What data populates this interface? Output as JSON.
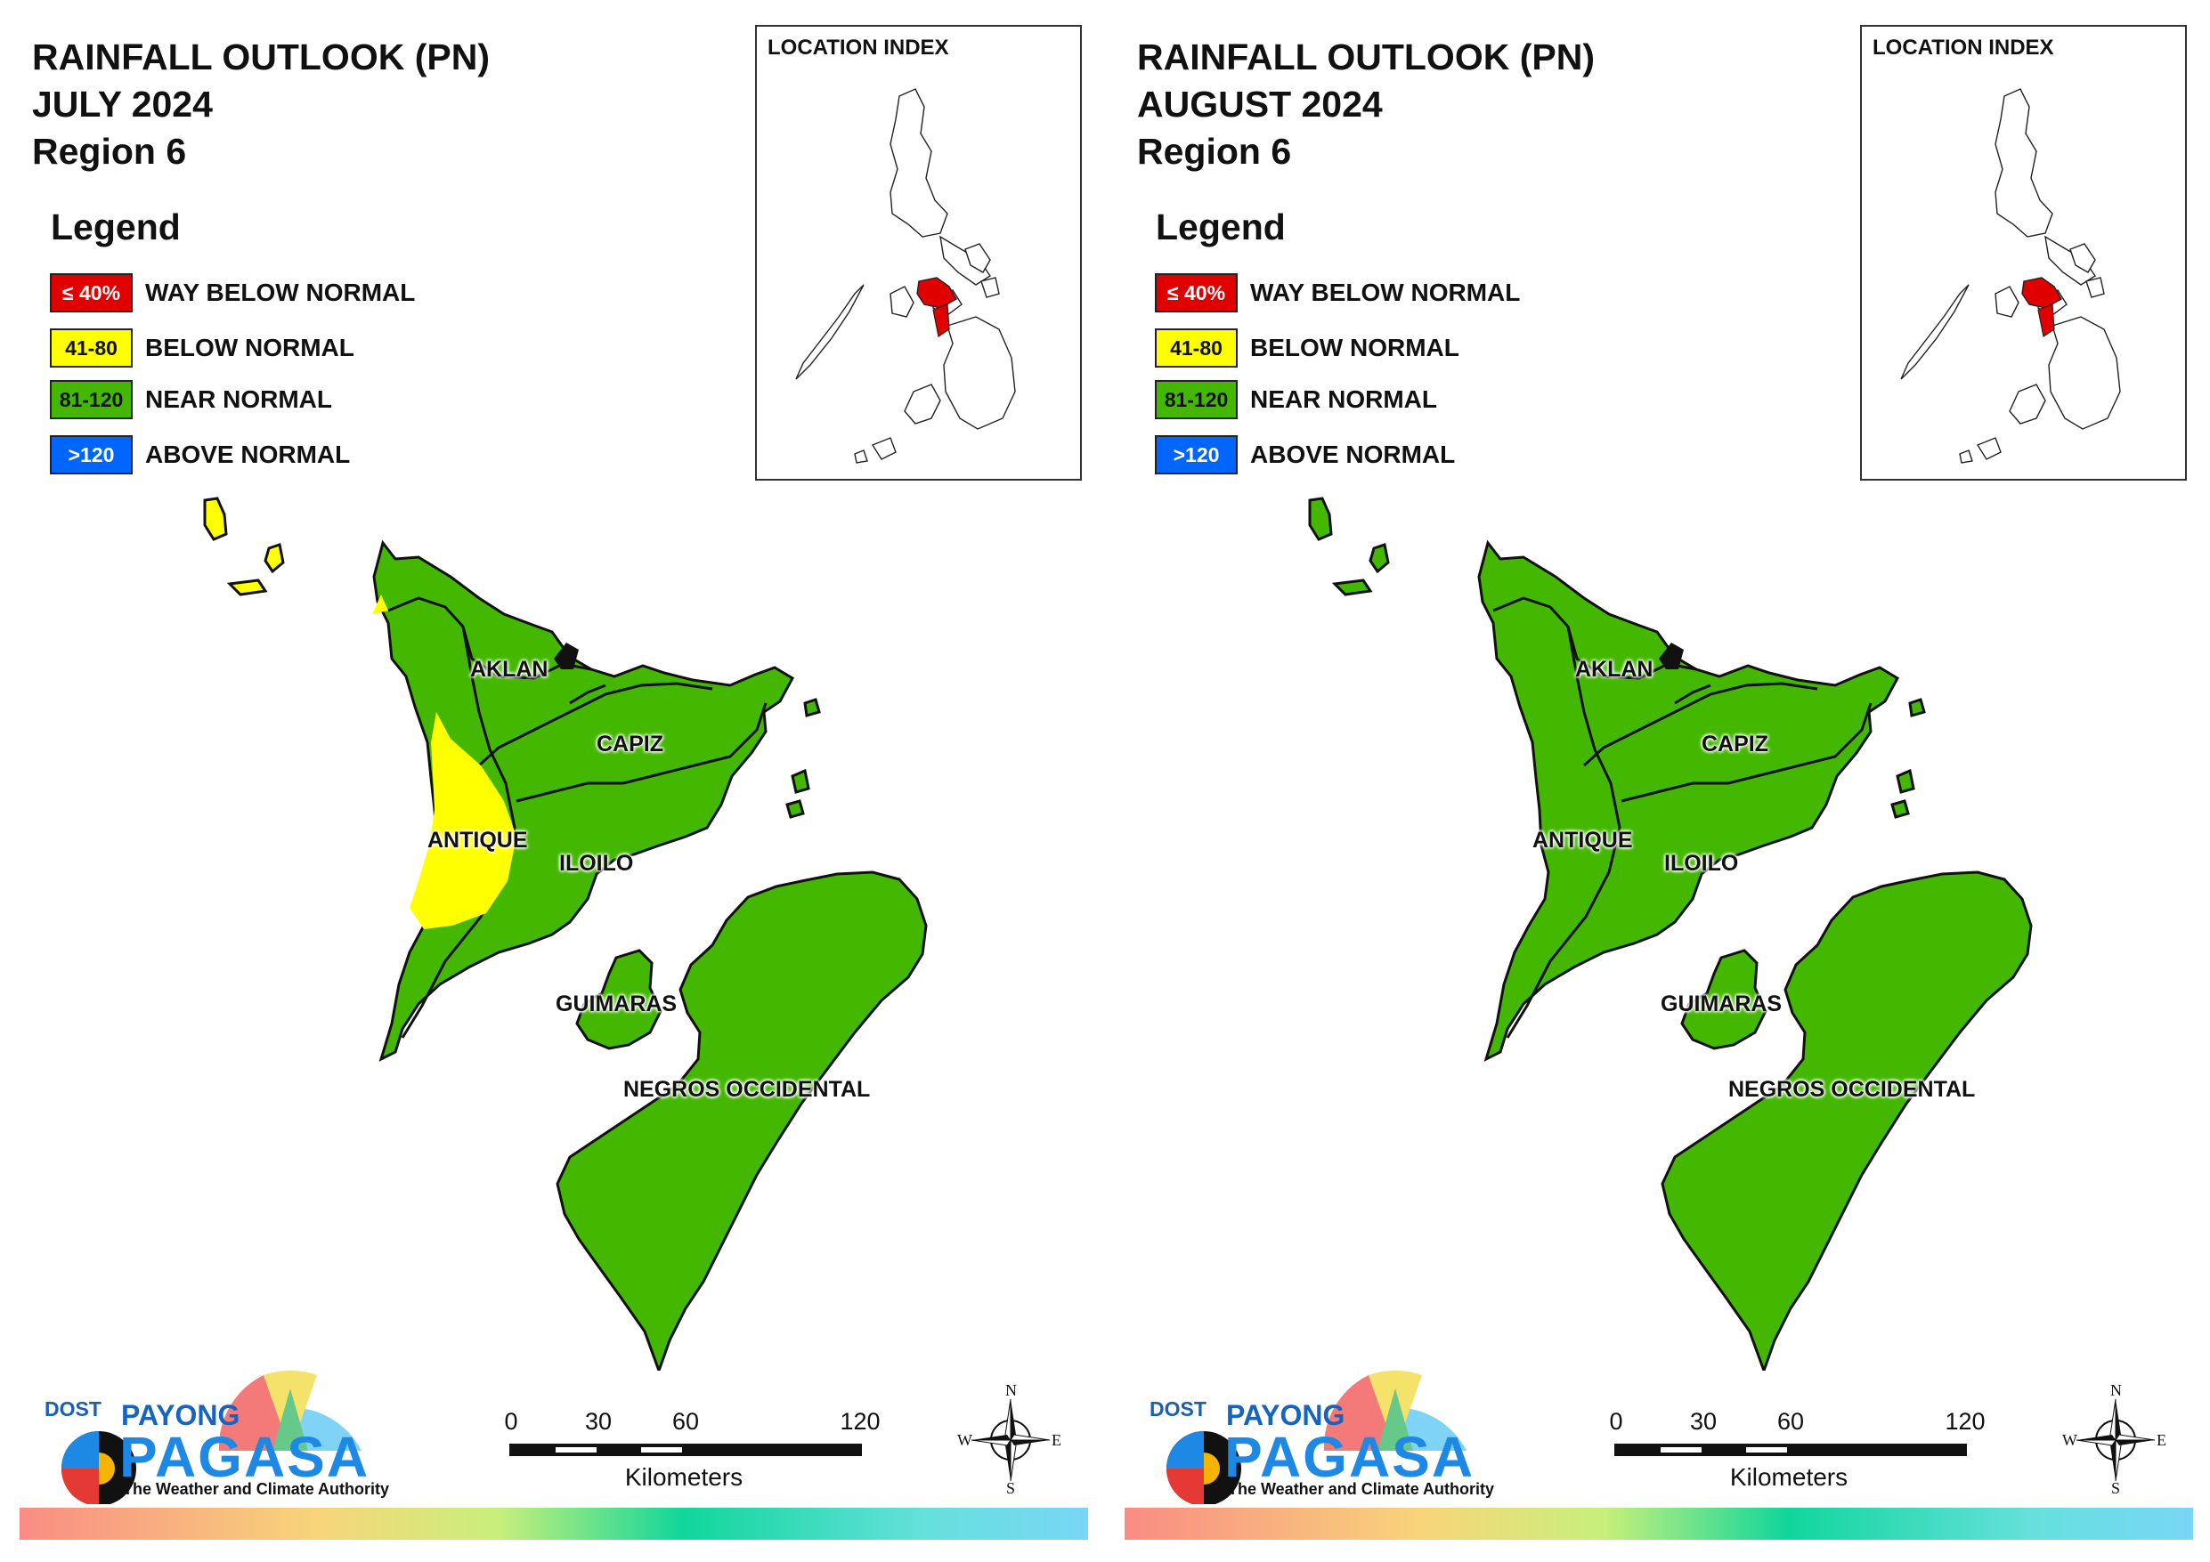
{
  "panels": [
    {
      "title_line1": "RAINFALL OUTLOOK (PN)",
      "title_line2": "JULY 2024",
      "title_line3": "Region 6",
      "legend_title": "Legend",
      "legend": [
        {
          "range": "≤ 40%",
          "label": "WAY BELOW NORMAL",
          "color": "#e00000"
        },
        {
          "range": "41-80",
          "label": "BELOW NORMAL",
          "color": "#ffff00"
        },
        {
          "range": "81-120",
          "label": "NEAR NORMAL",
          "color": "#44b800"
        },
        {
          "range": ">120",
          "label": "ABOVE NORMAL",
          "color": "#0066ff"
        }
      ],
      "inset_title": "LOCATION INDEX",
      "provinces": {
        "aklan": "AKLAN",
        "capiz": "CAPIZ",
        "antique": "ANTIQUE",
        "iloilo": "ILOILO",
        "guimaras": "GUIMARAS",
        "negros": "NEGROS OCCIDENTAL"
      },
      "antique_below_normal_zone": true,
      "islands_category": "BELOW NORMAL"
    },
    {
      "title_line1": "RAINFALL OUTLOOK (PN)",
      "title_line2": "AUGUST 2024",
      "title_line3": "Region 6",
      "legend_title": "Legend",
      "legend": [
        {
          "range": "≤ 40%",
          "label": "WAY BELOW NORMAL",
          "color": "#e00000"
        },
        {
          "range": "41-80",
          "label": "BELOW NORMAL",
          "color": "#ffff00"
        },
        {
          "range": "81-120",
          "label": "NEAR NORMAL",
          "color": "#44b800"
        },
        {
          "range": ">120",
          "label": "ABOVE NORMAL",
          "color": "#0066ff"
        }
      ],
      "inset_title": "LOCATION INDEX",
      "provinces": {
        "aklan": "AKLAN",
        "capiz": "CAPIZ",
        "antique": "ANTIQUE",
        "iloilo": "ILOILO",
        "guimaras": "GUIMARAS",
        "negros": "NEGROS OCCIDENTAL"
      },
      "antique_below_normal_zone": false,
      "islands_category": "NEAR NORMAL"
    }
  ],
  "scale": {
    "ticks": [
      "0",
      "30",
      "60",
      "120"
    ],
    "unit": "Kilometers"
  },
  "compass": {
    "n": "N",
    "e": "E",
    "s": "S",
    "w": "W"
  },
  "logo": {
    "dost": "DOST",
    "payong": "PAYONG",
    "pagasa": "PAGASA",
    "tagline": "The Weather and Climate Authority"
  },
  "colors": {
    "near_normal": "#44b800",
    "below_normal": "#ffff00",
    "way_below": "#e00000",
    "above_normal": "#0066ff",
    "region_highlight": "#e00000"
  }
}
